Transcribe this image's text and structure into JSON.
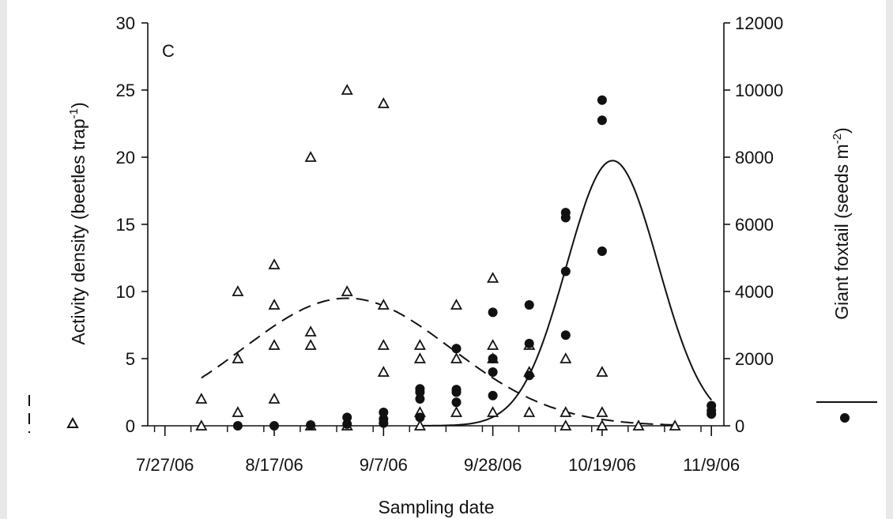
{
  "chart_data": {
    "type": "scatter",
    "panel_label": "C",
    "xlabel": "Sampling date",
    "ylabel_left": "Activity density (beetles trap",
    "ylabel_left_sup": "-1",
    "ylabel_left_close": ")",
    "ylabel_right": "Giant foxtail (seeds m",
    "ylabel_right_sup": "-2",
    "ylabel_right_close": ")",
    "x_tick_labels": [
      "7/27/06",
      "8/17/06",
      "9/7/06",
      "9/28/06",
      "10/19/06",
      "11/9/06"
    ],
    "x_tick_days": [
      0,
      21,
      42,
      63,
      84,
      105
    ],
    "xlim": [
      0,
      105
    ],
    "ylim_left": [
      0,
      30
    ],
    "ylim_right": [
      0,
      12000
    ],
    "y_left_ticks": [
      0,
      5,
      10,
      15,
      20,
      25,
      30
    ],
    "y_right_ticks": [
      0,
      2000,
      4000,
      6000,
      8000,
      10000,
      12000
    ],
    "grid": false,
    "legend_placement": "outside-left and outside-right",
    "series": [
      {
        "marker": "open-triangle",
        "axis": "left",
        "points": [
          [
            7,
            2
          ],
          [
            7,
            0
          ],
          [
            14,
            10
          ],
          [
            14,
            5
          ],
          [
            14,
            1
          ],
          [
            21,
            12
          ],
          [
            21,
            9
          ],
          [
            21,
            6
          ],
          [
            21,
            2
          ],
          [
            28,
            20
          ],
          [
            28,
            7
          ],
          [
            28,
            6
          ],
          [
            28,
            0
          ],
          [
            35,
            25
          ],
          [
            35,
            10
          ],
          [
            35,
            0
          ],
          [
            42,
            24
          ],
          [
            42,
            9
          ],
          [
            42,
            6
          ],
          [
            42,
            4
          ],
          [
            49,
            6
          ],
          [
            49,
            5
          ],
          [
            49,
            1
          ],
          [
            49,
            0
          ],
          [
            56,
            9
          ],
          [
            56,
            5
          ],
          [
            56,
            1
          ],
          [
            63,
            11
          ],
          [
            63,
            6
          ],
          [
            63,
            5
          ],
          [
            63,
            1
          ],
          [
            70,
            6
          ],
          [
            70,
            4
          ],
          [
            70,
            1
          ],
          [
            77,
            5
          ],
          [
            77,
            1
          ],
          [
            77,
            0
          ],
          [
            84,
            4
          ],
          [
            84,
            1
          ],
          [
            84,
            0
          ],
          [
            91,
            0
          ],
          [
            98,
            0
          ]
        ]
      },
      {
        "marker": "filled-circle",
        "axis": "right",
        "points": [
          [
            14,
            0
          ],
          [
            21,
            0
          ],
          [
            28,
            25
          ],
          [
            35,
            250
          ],
          [
            35,
            50
          ],
          [
            42,
            400
          ],
          [
            42,
            200
          ],
          [
            42,
            80
          ],
          [
            49,
            1100
          ],
          [
            49,
            1000
          ],
          [
            49,
            800
          ],
          [
            49,
            250
          ],
          [
            56,
            2300
          ],
          [
            56,
            1080
          ],
          [
            56,
            1000
          ],
          [
            56,
            700
          ],
          [
            63,
            3380
          ],
          [
            63,
            2000
          ],
          [
            63,
            1600
          ],
          [
            63,
            900
          ],
          [
            70,
            3600
          ],
          [
            70,
            2450
          ],
          [
            70,
            1500
          ],
          [
            77,
            6350
          ],
          [
            77,
            6200
          ],
          [
            77,
            4600
          ],
          [
            77,
            2700
          ],
          [
            84,
            9700
          ],
          [
            84,
            9100
          ],
          [
            84,
            5200
          ],
          [
            105,
            600
          ],
          [
            105,
            450
          ],
          [
            105,
            350
          ]
        ]
      },
      {
        "style": "dashed-line",
        "axis": "left",
        "marker_ref": "open-triangle",
        "fit": {
          "amplitude": 9.5,
          "center": 35,
          "width": 20
        },
        "x_range": [
          7,
          98
        ]
      },
      {
        "style": "solid-line",
        "axis": "right",
        "marker_ref": "filled-circle",
        "fit": {
          "amplitude": 7900,
          "center": 86,
          "width": 8.8
        },
        "x_range": [
          49,
          105
        ]
      }
    ]
  }
}
